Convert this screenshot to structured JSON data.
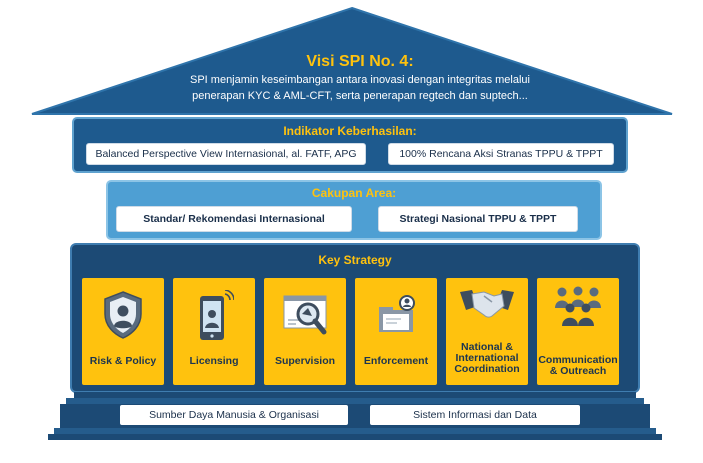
{
  "roof": {
    "title": "Visi SPI No. 4:",
    "line1": "SPI menjamin keseimbangan antara inovasi dengan integritas melalui",
    "line2": "penerapan KYC & AML-CFT, serta penerapan regtech dan suptech..."
  },
  "indikator": {
    "title": "Indikator Keberhasilan:",
    "items": [
      "Balanced Perspective View Internasional, al. FATF, APG",
      "100% Rencana Aksi Stranas TPPU & TPPT"
    ]
  },
  "cakupan": {
    "title": "Cakupan Area:",
    "items": [
      "Standar/ Rekomendasi Internasional",
      "Strategi Nasional TPPU & TPPT"
    ]
  },
  "strategy": {
    "title": "Key Strategy",
    "cards": [
      {
        "label": "Risk & Policy",
        "icon": "shield-user-icon"
      },
      {
        "label": "Licensing",
        "icon": "smartphone-icon"
      },
      {
        "label": "Supervision",
        "icon": "magnifier-icon"
      },
      {
        "label": "Enforcement",
        "icon": "folder-icon"
      },
      {
        "label": "National & International Coordination",
        "icon": "handshake-icon"
      },
      {
        "label": "Communication & Outreach",
        "icon": "people-group-icon"
      }
    ]
  },
  "foundation": {
    "items": [
      "Sumber Daya Manusia & Organisasi",
      "Sistem Informasi dan Data"
    ]
  },
  "colors": {
    "roof": "#1E5A8E",
    "accent": "#FFC20E",
    "tier2": "#4E9FD3",
    "tier3": "#1C4A75"
  }
}
